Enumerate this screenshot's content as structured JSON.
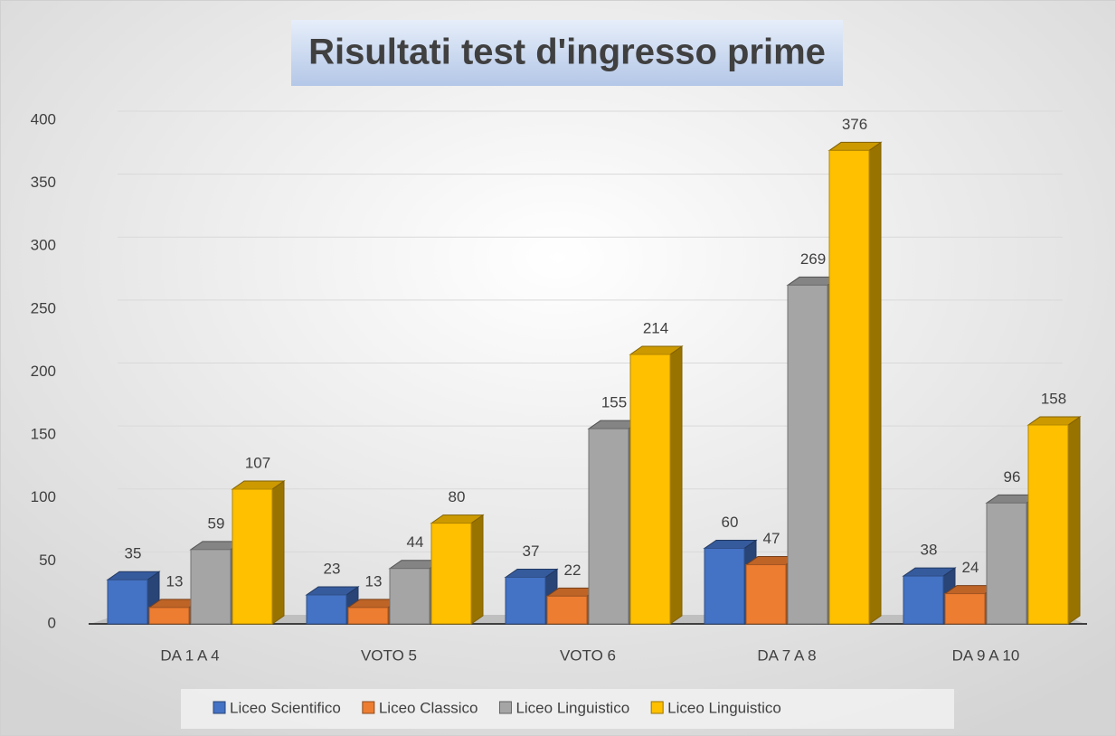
{
  "chart_data": {
    "type": "bar3d",
    "title": "Risultati test d'ingresso prime",
    "categories": [
      "DA 1 A 4",
      "VOTO 5",
      "VOTO 6",
      "DA 7 A 8",
      "DA 9 A 10"
    ],
    "series": [
      {
        "name": "Liceo Scientifico",
        "color": "#4472c4",
        "values": [
          35,
          23,
          37,
          60,
          38
        ]
      },
      {
        "name": "Liceo Classico",
        "color": "#ed7d31",
        "values": [
          13,
          13,
          22,
          47,
          24
        ]
      },
      {
        "name": "Liceo Linguistico",
        "color": "#a5a5a5",
        "values": [
          59,
          44,
          155,
          269,
          96
        ]
      },
      {
        "name": "Liceo Linguistico",
        "color": "#ffc000",
        "values": [
          107,
          80,
          214,
          376,
          158
        ]
      }
    ],
    "ylim": [
      0,
      400
    ],
    "yticks": [
      0,
      50,
      100,
      150,
      200,
      250,
      300,
      350,
      400
    ],
    "grid": true,
    "legend": "bottom"
  }
}
